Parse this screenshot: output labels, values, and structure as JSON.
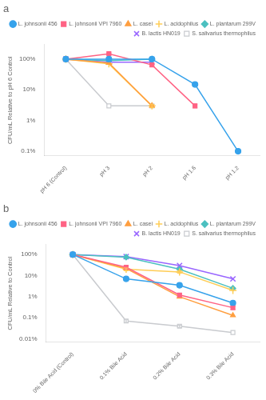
{
  "chart_data": [
    {
      "type": "line",
      "title": "a",
      "categories": [
        "pH 6 (Control)",
        "pH 3",
        "pH 2",
        "pH 1.6",
        "pH 1.2"
      ],
      "ylabel": "CFU/mL Relative to pH 6 Control",
      "log": "y",
      "grid": false,
      "legend": "upper right",
      "ylim": [
        0.07,
        300
      ],
      "yticks": [
        {
          "value": 0.1,
          "label": "0.1%"
        },
        {
          "value": 1,
          "label": "1%"
        },
        {
          "value": 10,
          "label": "10%"
        },
        {
          "value": 100,
          "label": "100%"
        }
      ],
      "series": [
        {
          "name": "L. johnsonii 456",
          "marker": "circle",
          "values": [
            100,
            100,
            100,
            15,
            0.1
          ],
          "errors": [
            0,
            0,
            0,
            1.5,
            0
          ]
        },
        {
          "name": "L. johnsonii VPI 7960",
          "marker": "square",
          "values": [
            100,
            150,
            65,
            3,
            null
          ],
          "errors": [
            0,
            10,
            8,
            0.4,
            0
          ]
        },
        {
          "name": "L. casei",
          "marker": "triangle",
          "values": [
            100,
            75,
            3,
            null,
            null
          ],
          "errors": [
            0,
            0,
            0.3,
            0,
            0
          ]
        },
        {
          "name": "L. acidophilus",
          "marker": "plus",
          "values": [
            100,
            70,
            3,
            null,
            null
          ],
          "errors": [
            0,
            0,
            0.3,
            0,
            0
          ]
        },
        {
          "name": "L. plantarum 299V",
          "marker": "diamond",
          "values": [
            100,
            90,
            100,
            null,
            null
          ],
          "errors": [
            0,
            0,
            0,
            0,
            0
          ]
        },
        {
          "name": "B. lactis HN019",
          "marker": "x",
          "values": [
            100,
            80,
            80,
            null,
            null
          ],
          "errors": [
            0,
            0,
            0,
            0,
            0
          ]
        },
        {
          "name": "S. salivarius thermophilus",
          "marker": "open_square",
          "values": [
            100,
            3,
            3,
            null,
            null
          ],
          "errors": [
            0,
            0,
            0,
            0,
            0
          ]
        }
      ]
    },
    {
      "type": "line",
      "title": "b",
      "categories": [
        "0% Bile Acid (Control)",
        "0.1% Bile Acid",
        "0.2% Bile Acid",
        "0.3% Bile Acid"
      ],
      "ylabel": "CFU/mL Relative to Control",
      "log": "y",
      "grid": false,
      "legend": "upper right",
      "ylim": [
        0.007,
        300
      ],
      "yticks": [
        {
          "value": 0.01,
          "label": "0.01%"
        },
        {
          "value": 0.1,
          "label": "0.1%"
        },
        {
          "value": 1,
          "label": "1%"
        },
        {
          "value": 10,
          "label": "10%"
        },
        {
          "value": 100,
          "label": "100%"
        }
      ],
      "series": [
        {
          "name": "L. johnsonii 456",
          "marker": "circle",
          "values": [
            100,
            7,
            3.5,
            0.5
          ],
          "errors": [
            0,
            0,
            0,
            0
          ]
        },
        {
          "name": "L. johnsonii VPI 7960",
          "marker": "square",
          "values": [
            100,
            25,
            1.2,
            0.3
          ],
          "errors": [
            0,
            3,
            0.2,
            0.05
          ]
        },
        {
          "name": "L. casei",
          "marker": "triangle",
          "values": [
            100,
            22,
            1.0,
            0.13
          ],
          "errors": [
            0,
            0,
            0,
            0
          ]
        },
        {
          "name": "L. acidophilus",
          "marker": "plus",
          "values": [
            100,
            20,
            15,
            2.0
          ],
          "errors": [
            0,
            3,
            2,
            0
          ]
        },
        {
          "name": "L. plantarum 299V",
          "marker": "diamond",
          "values": [
            100,
            75,
            20,
            2.5
          ],
          "errors": [
            0,
            0,
            0,
            0
          ]
        },
        {
          "name": "B. lactis HN019",
          "marker": "x",
          "values": [
            100,
            80,
            30,
            7
          ],
          "errors": [
            0,
            0,
            0,
            0
          ]
        },
        {
          "name": "S. salivarius thermophilus",
          "marker": "open_square",
          "values": [
            100,
            0.07,
            0.04,
            0.02
          ],
          "errors": [
            0,
            0.01,
            0.005,
            0
          ]
        }
      ]
    }
  ]
}
